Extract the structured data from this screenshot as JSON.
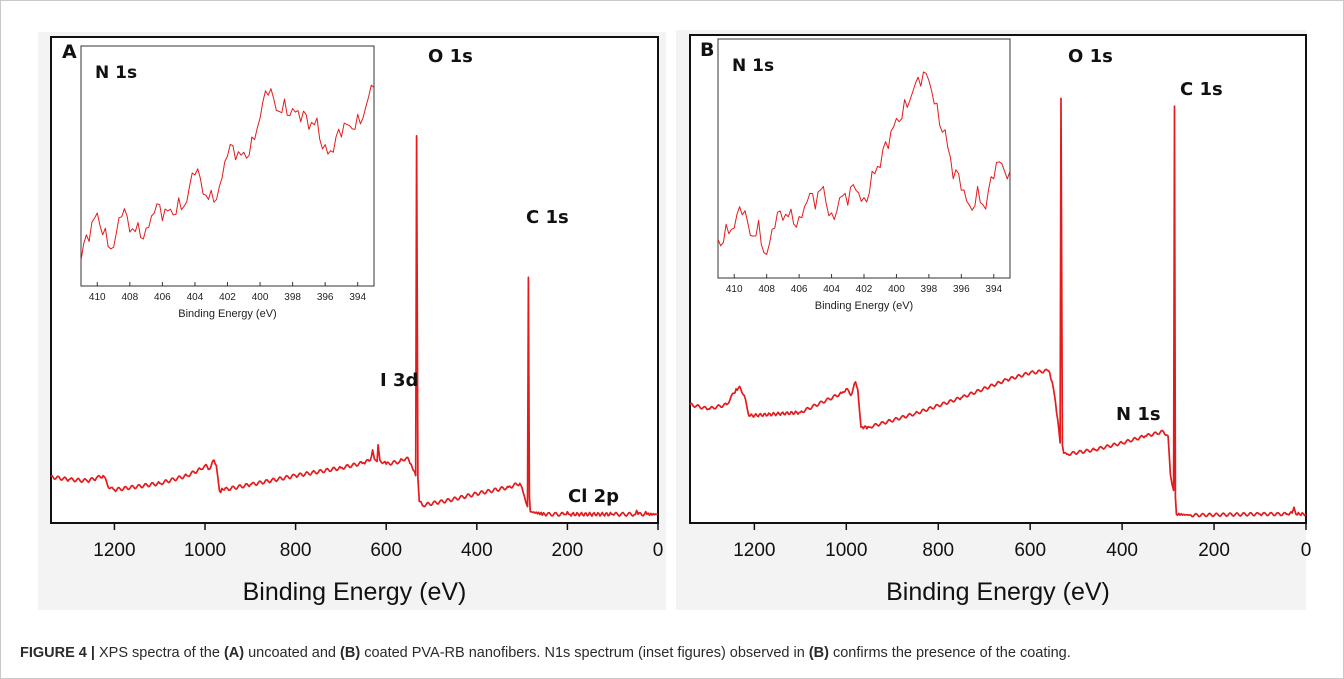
{
  "caption": {
    "label": "FIGURE 4 |",
    "seg1": " XPS spectra of the ",
    "ref_a": "(A)",
    "seg2": " uncoated and ",
    "ref_b": "(B)",
    "seg3": " coated PVA-RB nanofibers. N1s spectrum (inset figures) observed in ",
    "ref_b2": "(B)",
    "seg4": " confirms the presence of the coating."
  },
  "colors": {
    "line": "#e41a1c",
    "caption_label": "#1f1f1f",
    "axis": "#111111"
  },
  "chart_data": [
    {
      "panel": "A",
      "type": "line",
      "xlabel": "Binding Energy (eV)",
      "xlim": [
        1340,
        0
      ],
      "xticks": [
        1200,
        1000,
        800,
        600,
        400,
        200,
        0
      ],
      "y_units": "arbitrary (intensity)",
      "series": [
        {
          "points": [
            [
              1340,
              35
            ],
            [
              1300,
              33
            ],
            [
              1260,
              32
            ],
            [
              1240,
              34
            ],
            [
              1225,
              36
            ],
            [
              1210,
              26
            ],
            [
              1200,
              25
            ],
            [
              1100,
              30
            ],
            [
              1040,
              36
            ],
            [
              1010,
              41
            ],
            [
              1000,
              44
            ],
            [
              990,
              41
            ],
            [
              980,
              48
            ],
            [
              975,
              44
            ],
            [
              968,
              24
            ],
            [
              960,
              25
            ],
            [
              900,
              29
            ],
            [
              800,
              36
            ],
            [
              700,
              42
            ],
            [
              650,
              46
            ],
            [
              635,
              48
            ],
            [
              630,
              56
            ],
            [
              626,
              49
            ],
            [
              620,
              47
            ],
            [
              618,
              60
            ],
            [
              614,
              48
            ],
            [
              600,
              45
            ],
            [
              570,
              47
            ],
            [
              555,
              50
            ],
            [
              545,
              45
            ],
            [
              540,
              40
            ],
            [
              535,
              36
            ],
            [
              533,
              300
            ],
            [
              530,
              34
            ],
            [
              527,
              16
            ],
            [
              520,
              13
            ],
            [
              460,
              17
            ],
            [
              400,
              22
            ],
            [
              330,
              27
            ],
            [
              305,
              30
            ],
            [
              295,
              20
            ],
            [
              288,
              12
            ],
            [
              286,
              190
            ],
            [
              284,
              20
            ],
            [
              282,
              8
            ],
            [
              250,
              6
            ],
            [
              205,
              6
            ],
            [
              200,
              8
            ],
            [
              197,
              6
            ],
            [
              100,
              6
            ],
            [
              50,
              6
            ],
            [
              47,
              9
            ],
            [
              44,
              6
            ],
            [
              30,
              6
            ],
            [
              27,
              8
            ],
            [
              24,
              6
            ],
            [
              0,
              6
            ]
          ]
        }
      ],
      "annotations": [
        {
          "text": "O 1s",
          "x": 533
        },
        {
          "text": "C 1s",
          "x": 286
        },
        {
          "text": "I 3d",
          "x": 625
        },
        {
          "text": "Cl 2p",
          "x": 200
        }
      ],
      "inset": {
        "title": "N 1s",
        "xlabel": "Binding Energy (eV)",
        "xlim": [
          411,
          393
        ],
        "xticks": [
          410,
          408,
          406,
          404,
          402,
          400,
          398,
          396,
          394
        ],
        "series": [
          {
            "points": [
              [
                411,
                5
              ],
              [
                410.5,
                15
              ],
              [
                410,
                30
              ],
              [
                409.5,
                22
              ],
              [
                409,
                12
              ],
              [
                408.5,
                28
              ],
              [
                408,
                20
              ],
              [
                407.5,
                25
              ],
              [
                407,
                22
              ],
              [
                406.5,
                30
              ],
              [
                406,
                26
              ],
              [
                405.5,
                32
              ],
              [
                405,
                38
              ],
              [
                404.5,
                36
              ],
              [
                404,
                50
              ],
              [
                403.5,
                40
              ],
              [
                403,
                42
              ],
              [
                402.5,
                44
              ],
              [
                402,
                60
              ],
              [
                401.5,
                58
              ],
              [
                401,
                62
              ],
              [
                400.5,
                70
              ],
              [
                400,
                80
              ],
              [
                399.5,
                92
              ],
              [
                399,
                84
              ],
              [
                398.5,
                90
              ],
              [
                398,
                85
              ],
              [
                397.5,
                78
              ],
              [
                397,
                74
              ],
              [
                396.5,
                80
              ],
              [
                396,
                66
              ],
              [
                395.5,
                62
              ],
              [
                395,
                70
              ],
              [
                394.5,
                76
              ],
              [
                394,
                82
              ],
              [
                393.5,
                86
              ],
              [
                393,
                96
              ]
            ]
          }
        ]
      }
    },
    {
      "panel": "B",
      "type": "line",
      "xlabel": "Binding Energy (eV)",
      "xlim": [
        1340,
        0
      ],
      "xticks": [
        1200,
        1000,
        800,
        600,
        400,
        200,
        0
      ],
      "y_units": "arbitrary (intensity)",
      "series": [
        {
          "points": [
            [
              1340,
              104
            ],
            [
              1300,
              100
            ],
            [
              1260,
              104
            ],
            [
              1245,
              114
            ],
            [
              1232,
              120
            ],
            [
              1222,
              112
            ],
            [
              1212,
              94
            ],
            [
              1100,
              97
            ],
            [
              1010,
              114
            ],
            [
              1000,
              118
            ],
            [
              990,
              112
            ],
            [
              980,
              124
            ],
            [
              975,
              117
            ],
            [
              968,
              84
            ],
            [
              950,
              84
            ],
            [
              850,
              96
            ],
            [
              750,
              110
            ],
            [
              650,
              126
            ],
            [
              600,
              132
            ],
            [
              560,
              134
            ],
            [
              552,
              124
            ],
            [
              545,
              106
            ],
            [
              540,
              90
            ],
            [
              535,
              70
            ],
            [
              533,
              375
            ],
            [
              530,
              68
            ],
            [
              527,
              61
            ],
            [
              520,
              60
            ],
            [
              460,
              64
            ],
            [
              400,
              70
            ],
            [
              350,
              76
            ],
            [
              310,
              80
            ],
            [
              300,
              76
            ],
            [
              295,
              42
            ],
            [
              288,
              28
            ],
            [
              286,
              368
            ],
            [
              284,
              22
            ],
            [
              282,
              7
            ],
            [
              250,
              6
            ],
            [
              100,
              7
            ],
            [
              40,
              7
            ],
            [
              30,
              8
            ],
            [
              26,
              13
            ],
            [
              22,
              7
            ],
            [
              0,
              7
            ]
          ]
        }
      ],
      "annotations": [
        {
          "text": "O 1s",
          "x": 533
        },
        {
          "text": "C 1s",
          "x": 286
        },
        {
          "text": "N 1s",
          "x": 400
        }
      ],
      "inset": {
        "title": "N 1s",
        "xlabel": "Binding Energy (eV)",
        "xlim": [
          411,
          393
        ],
        "xticks": [
          410,
          408,
          406,
          404,
          402,
          400,
          398,
          396,
          394
        ],
        "series": [
          {
            "points": [
              [
                411,
                12
              ],
              [
                410.5,
                20
              ],
              [
                410,
                18
              ],
              [
                409.5,
                25
              ],
              [
                409,
                14
              ],
              [
                408.5,
                22
              ],
              [
                408,
                4
              ],
              [
                407.5,
                18
              ],
              [
                407,
                22
              ],
              [
                406.5,
                28
              ],
              [
                406,
                24
              ],
              [
                405.5,
                32
              ],
              [
                405,
                28
              ],
              [
                404.5,
                40
              ],
              [
                404,
                26
              ],
              [
                403.5,
                34
              ],
              [
                403,
                30
              ],
              [
                402.5,
                38
              ],
              [
                402,
                34
              ],
              [
                401.5,
                48
              ],
              [
                401,
                50
              ],
              [
                400.5,
                60
              ],
              [
                400,
                76
              ],
              [
                399.5,
                86
              ],
              [
                399,
                90
              ],
              [
                398.5,
                93
              ],
              [
                398,
                96
              ],
              [
                397.5,
                84
              ],
              [
                397,
                70
              ],
              [
                396.5,
                44
              ],
              [
                396,
                38
              ],
              [
                395.5,
                30
              ],
              [
                395,
                40
              ],
              [
                394.5,
                28
              ],
              [
                394,
                44
              ],
              [
                393.5,
                52
              ],
              [
                393,
                48
              ]
            ]
          }
        ]
      }
    }
  ]
}
